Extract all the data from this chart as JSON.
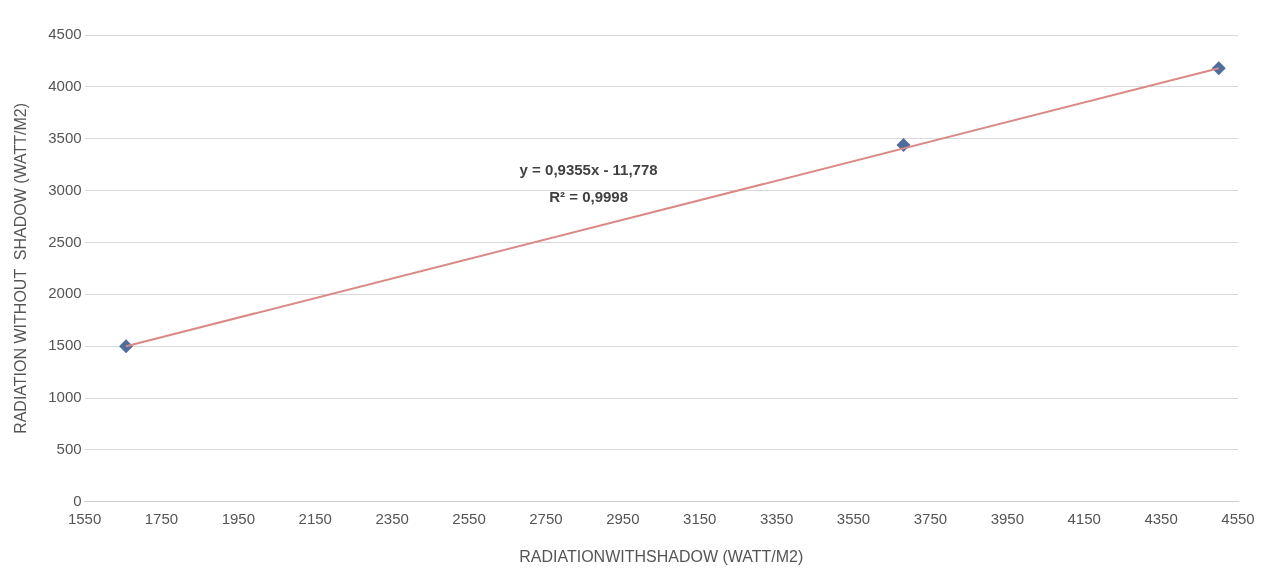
{
  "chart_data": {
    "type": "scatter",
    "xlabel": "RADIATIONWITHSHADOW (WATT/M2)",
    "ylabel": "RADIATION WITHOUT  SHADOW (WATT/M2)",
    "x": [
      1658,
      3680,
      4500
    ],
    "series": [
      {
        "color": "#4f6d9c",
        "marker": "diamond",
        "values": [
          1500,
          3440,
          4180
        ]
      },
      {
        "type": "line",
        "color": "#d98a86",
        "marker": "none",
        "x": [
          1658,
          4500
        ],
        "values": [
          1500,
          4180
        ]
      }
    ],
    "xlim": [
      1550,
      4550
    ],
    "xticks": [
      1550,
      1750,
      1950,
      2150,
      2350,
      2550,
      2750,
      2950,
      3150,
      3350,
      3550,
      3750,
      3950,
      4150,
      4350,
      4550
    ],
    "ylim": [
      0,
      4500
    ],
    "yticks": [
      0,
      500,
      1000,
      1500,
      2000,
      2500,
      3000,
      3500,
      4000,
      4500
    ],
    "grid": "y",
    "legend": false,
    "annotations": [
      "y = 0,9355x - 11,778",
      "R² = 0,9998"
    ]
  }
}
